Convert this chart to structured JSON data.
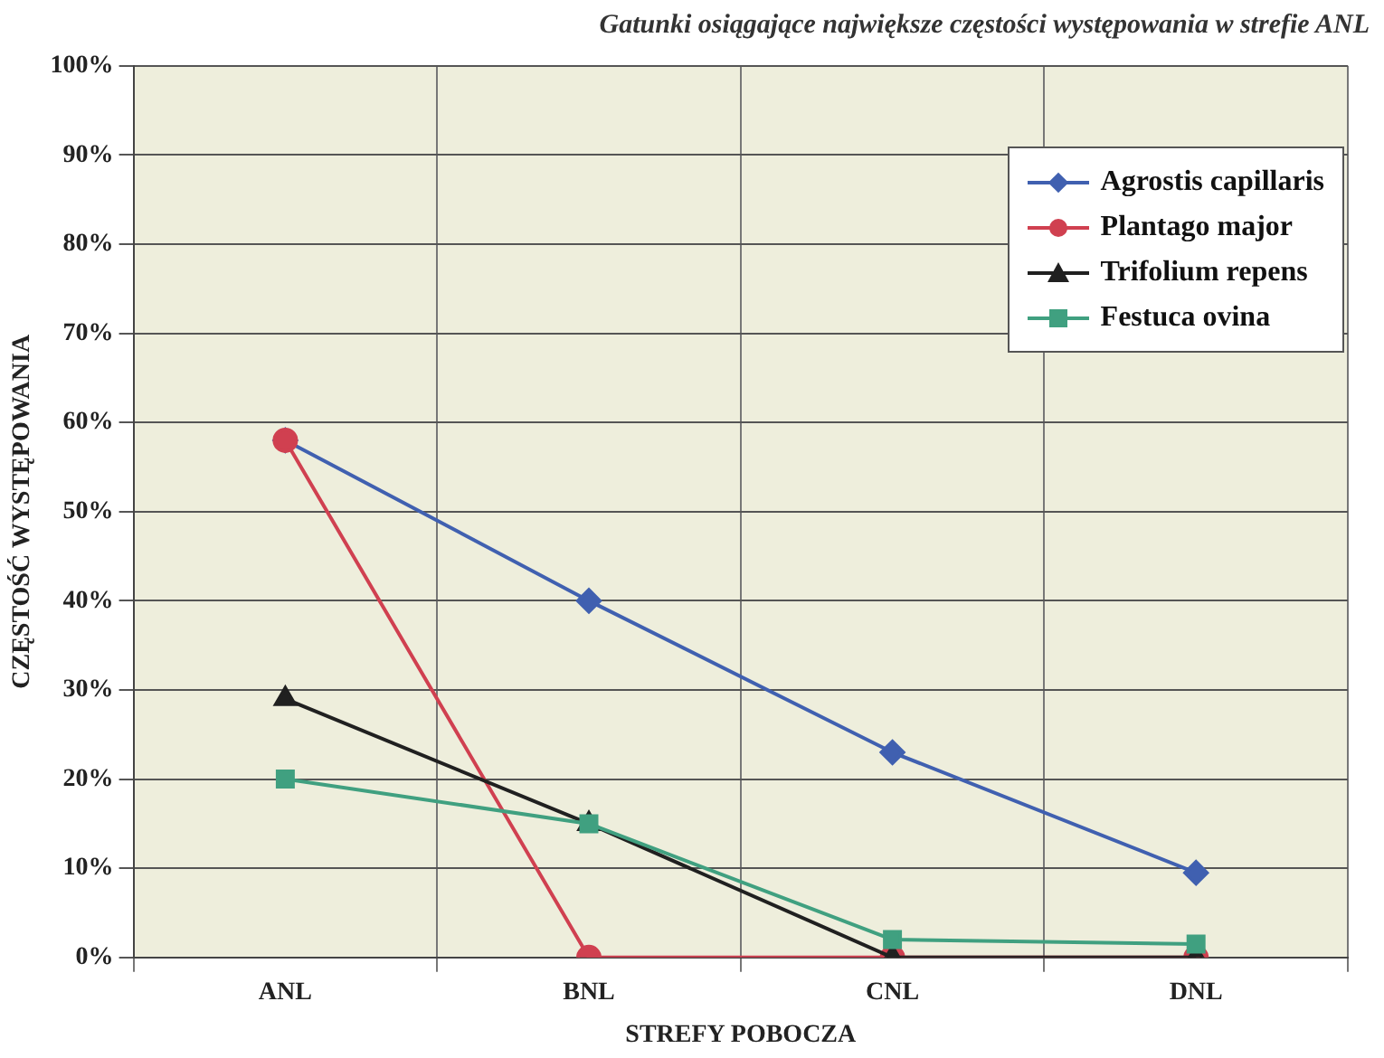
{
  "chart_data": {
    "type": "line",
    "title": "Gatunki osiągające największe częstości występowania w strefie ANL",
    "xlabel": "STREFY POBOCZA",
    "ylabel": "CZĘSTOŚĆ WYSTĘPOWANIA",
    "categories": [
      "ANL",
      "BNL",
      "CNL",
      "DNL"
    ],
    "series": [
      {
        "name": "Agrostis capillaris",
        "color": "#4060b0",
        "marker": "diamond",
        "values": [
          58,
          40,
          23,
          9.5
        ]
      },
      {
        "name": "Plantago major",
        "color": "#d04050",
        "marker": "circle",
        "values": [
          58,
          0,
          0,
          0
        ]
      },
      {
        "name": "Trifolium repens",
        "color": "#202020",
        "marker": "triangle",
        "values": [
          29,
          15,
          0,
          0
        ]
      },
      {
        "name": "Festuca ovina",
        "color": "#40a080",
        "marker": "square",
        "values": [
          20,
          15,
          2,
          1.5
        ]
      }
    ],
    "ylim": [
      0,
      100
    ],
    "yticks": [
      {
        "value": 0,
        "label": "0%"
      },
      {
        "value": 10,
        "label": "10%"
      },
      {
        "value": 20,
        "label": "20%"
      },
      {
        "value": 30,
        "label": "30%"
      },
      {
        "value": 40,
        "label": "40%"
      },
      {
        "value": 50,
        "label": "50%"
      },
      {
        "value": 60,
        "label": "60%"
      },
      {
        "value": 70,
        "label": "70%"
      },
      {
        "value": 80,
        "label": "80%"
      },
      {
        "value": 90,
        "label": "90%"
      },
      {
        "value": 100,
        "label": "100%"
      }
    ],
    "grid": true,
    "legend": "top right"
  }
}
